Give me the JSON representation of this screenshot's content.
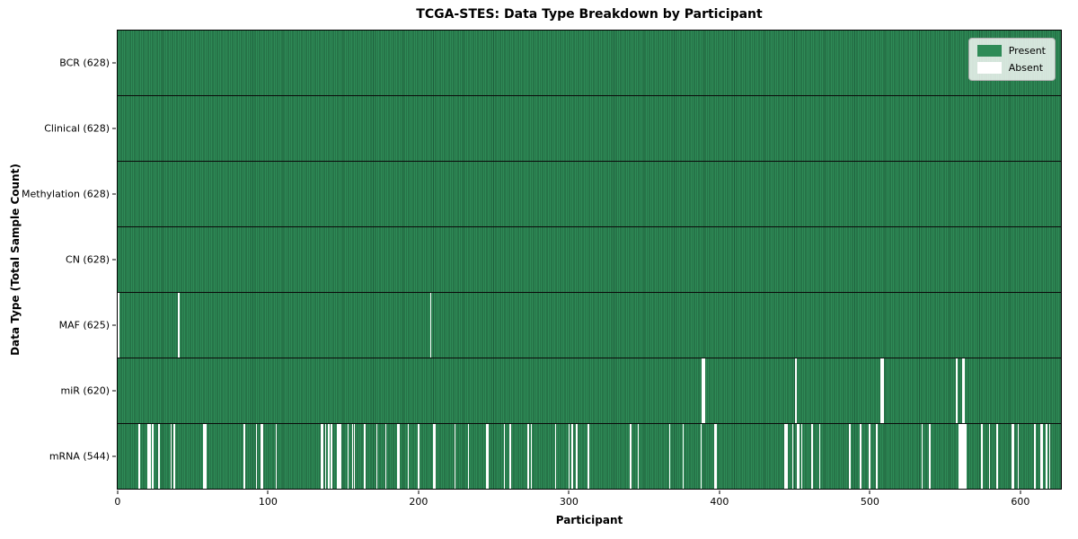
{
  "title": "TCGA-STES: Data Type Breakdown by Participant",
  "colors": {
    "present": "#2e8b57",
    "present_edge": "#1e5c3a",
    "absent": "#ffffff",
    "plot_border": "#000000"
  },
  "chart_data": {
    "type": "heatmap",
    "title": "TCGA-STES: Data Type Breakdown by Participant",
    "xlabel": "Participant",
    "ylabel": "Data Type (Total Sample Count)",
    "n_participants": 628,
    "x_ticks": [
      0,
      100,
      200,
      300,
      400,
      500,
      600
    ],
    "legend_position": "upper right",
    "grid": false,
    "legend": [
      {
        "label": "Present",
        "color": "#2e8b57"
      },
      {
        "label": "Absent",
        "color": "#ffffff"
      }
    ],
    "rows": [
      {
        "label": "BCR (628)",
        "data_type": "BCR",
        "present_count": 628,
        "total": 628,
        "absent_participants": []
      },
      {
        "label": "Clinical (628)",
        "data_type": "Clinical",
        "present_count": 628,
        "total": 628,
        "absent_participants": []
      },
      {
        "label": "Methylation (628)",
        "data_type": "Methylation",
        "present_count": 628,
        "total": 628,
        "absent_participants": []
      },
      {
        "label": "CN (628)",
        "data_type": "CN",
        "present_count": 628,
        "total": 628,
        "absent_participants": []
      },
      {
        "label": "MAF (625)",
        "data_type": "MAF",
        "present_count": 625,
        "total": 628,
        "absent_participants": [
          0,
          40,
          208
        ]
      },
      {
        "label": "miR (620)",
        "data_type": "miR",
        "present_count": 620,
        "total": 628,
        "absent_participants": [
          389,
          390,
          451,
          508,
          509,
          558,
          562,
          563
        ]
      },
      {
        "label": "mRNA (544)",
        "data_type": "mRNA",
        "present_count": 544,
        "total": 628,
        "absent_participants": [
          14,
          20,
          21,
          23,
          27,
          35,
          37,
          57,
          58,
          84,
          92,
          95,
          96,
          105,
          135,
          136,
          138,
          140,
          142,
          146,
          147,
          148,
          153,
          156,
          157,
          164,
          172,
          178,
          186,
          187,
          193,
          200,
          210,
          211,
          224,
          233,
          245,
          246,
          257,
          261,
          273,
          275,
          291,
          300,
          302,
          305,
          313,
          341,
          346,
          367,
          376,
          388,
          397,
          398,
          444,
          445,
          449,
          452,
          453,
          455,
          462,
          467,
          487,
          494,
          500,
          505,
          535,
          540,
          560,
          561,
          562,
          563,
          564,
          575,
          580,
          585,
          595,
          596,
          599,
          610,
          614,
          615,
          618,
          620
        ]
      }
    ]
  }
}
